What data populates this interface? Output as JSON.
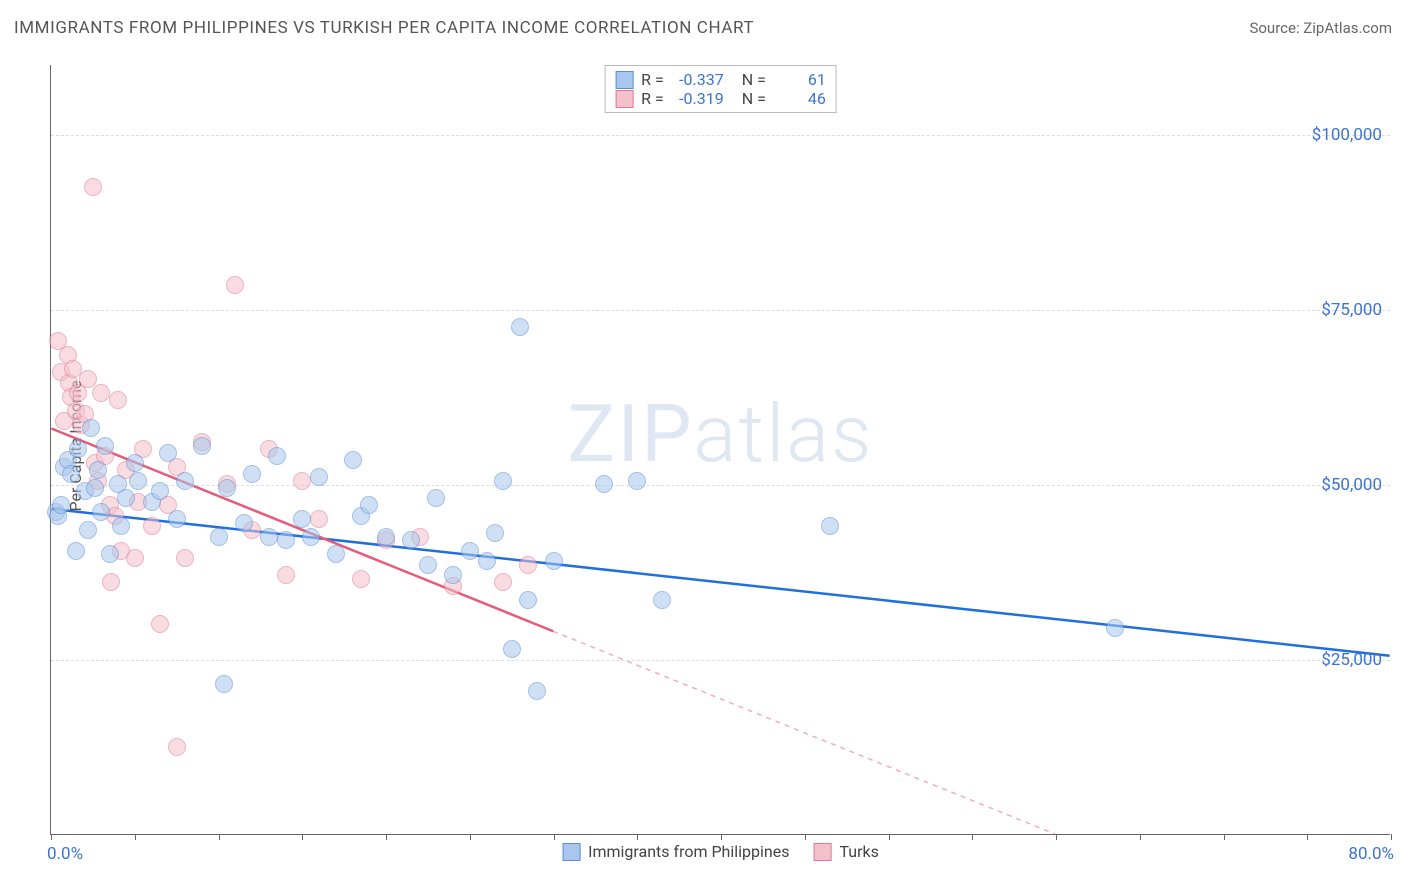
{
  "title": "IMMIGRANTS FROM PHILIPPINES VS TURKISH PER CAPITA INCOME CORRELATION CHART",
  "source_label": "Source: ZipAtlas.com",
  "ylabel": "Per Capita Income",
  "watermark_a": "ZIP",
  "watermark_b": "atlas",
  "chart": {
    "type": "scatter",
    "xlim": [
      0,
      80
    ],
    "x_unit": "%",
    "ylim": [
      0,
      110000
    ],
    "y_unit": "$",
    "x_ticks": [
      0,
      5,
      10,
      15,
      20,
      25,
      30,
      35,
      40,
      45,
      50,
      55,
      60,
      65,
      70,
      75,
      80
    ],
    "y_gridlines": [
      25000,
      50000,
      75000,
      100000
    ],
    "y_tick_labels": [
      "$25,000",
      "$50,000",
      "$75,000",
      "$100,000"
    ],
    "x_min_label": "0.0%",
    "x_max_label": "80.0%",
    "background_color": "#ffffff",
    "grid_color": "#dddddd",
    "axis_color": "#666666",
    "tick_label_color": "#3b74d4",
    "point_radius": 9,
    "point_opacity": 0.55,
    "line_width": 2.5
  },
  "series": [
    {
      "id": "philippines",
      "label": "Immigrants from Philippines",
      "R": "-0.337",
      "N": "61",
      "fill_color": "#a9c7ec",
      "stroke_color": "#5a8fd6",
      "line_color": "#1f6fe0",
      "reg": {
        "x1": 0,
        "y1": 46500,
        "x2": 80,
        "y2": 25500,
        "dash_after_x": null
      },
      "points": [
        [
          0.3,
          46000
        ],
        [
          0.4,
          45500
        ],
        [
          0.6,
          47000
        ],
        [
          0.8,
          52500
        ],
        [
          1.0,
          53500
        ],
        [
          1.2,
          51500
        ],
        [
          1.5,
          40500
        ],
        [
          1.6,
          55000
        ],
        [
          2.0,
          49000
        ],
        [
          2.2,
          43500
        ],
        [
          2.4,
          58000
        ],
        [
          2.6,
          49500
        ],
        [
          2.8,
          52000
        ],
        [
          3.0,
          46000
        ],
        [
          3.2,
          55500
        ],
        [
          3.5,
          40000
        ],
        [
          4.0,
          50000
        ],
        [
          4.2,
          44000
        ],
        [
          4.5,
          48000
        ],
        [
          5.0,
          53000
        ],
        [
          5.2,
          50500
        ],
        [
          6.0,
          47500
        ],
        [
          6.5,
          49000
        ],
        [
          7.0,
          54500
        ],
        [
          7.5,
          45000
        ],
        [
          8.0,
          50500
        ],
        [
          9.0,
          55500
        ],
        [
          10.0,
          42500
        ],
        [
          10.5,
          49500
        ],
        [
          10.3,
          21500
        ],
        [
          11.5,
          44500
        ],
        [
          12.0,
          51500
        ],
        [
          13.0,
          42500
        ],
        [
          13.5,
          54000
        ],
        [
          14.0,
          42000
        ],
        [
          15.0,
          45000
        ],
        [
          15.5,
          42500
        ],
        [
          16.0,
          51000
        ],
        [
          17.0,
          40000
        ],
        [
          18.0,
          53500
        ],
        [
          18.5,
          45500
        ],
        [
          19.0,
          47000
        ],
        [
          20.0,
          42500
        ],
        [
          21.5,
          42000
        ],
        [
          22.5,
          38500
        ],
        [
          23.0,
          48000
        ],
        [
          24.0,
          37000
        ],
        [
          25.0,
          40500
        ],
        [
          26.0,
          39000
        ],
        [
          26.5,
          43000
        ],
        [
          27.0,
          50500
        ],
        [
          27.5,
          26500
        ],
        [
          28.0,
          72500
        ],
        [
          28.5,
          33500
        ],
        [
          29.0,
          20500
        ],
        [
          30.0,
          39000
        ],
        [
          33.0,
          50000
        ],
        [
          35.0,
          50500
        ],
        [
          36.5,
          33500
        ],
        [
          46.5,
          44000
        ],
        [
          63.5,
          29500
        ]
      ]
    },
    {
      "id": "turks",
      "label": "Turks",
      "R": "-0.319",
      "N": "46",
      "fill_color": "#f3c0cb",
      "stroke_color": "#e07a92",
      "line_color": "#e85a7a",
      "reg": {
        "x1": 0,
        "y1": 58000,
        "x2": 60,
        "y2": 0,
        "dash_after_x": 30
      },
      "points": [
        [
          0.4,
          70500
        ],
        [
          0.6,
          66000
        ],
        [
          0.8,
          59000
        ],
        [
          1.0,
          68500
        ],
        [
          1.1,
          64500
        ],
        [
          1.2,
          62500
        ],
        [
          1.3,
          66500
        ],
        [
          1.5,
          60500
        ],
        [
          1.6,
          63000
        ],
        [
          1.8,
          58500
        ],
        [
          2.0,
          60000
        ],
        [
          2.2,
          65000
        ],
        [
          2.5,
          92500
        ],
        [
          2.6,
          53000
        ],
        [
          2.8,
          50500
        ],
        [
          3.0,
          63000
        ],
        [
          3.2,
          54000
        ],
        [
          3.5,
          47000
        ],
        [
          3.6,
          36000
        ],
        [
          3.8,
          45500
        ],
        [
          4.0,
          62000
        ],
        [
          4.2,
          40500
        ],
        [
          4.5,
          52000
        ],
        [
          5.0,
          39500
        ],
        [
          5.2,
          47500
        ],
        [
          5.5,
          55000
        ],
        [
          6.0,
          44000
        ],
        [
          6.5,
          30000
        ],
        [
          7.0,
          47000
        ],
        [
          7.5,
          52500
        ],
        [
          8.0,
          39500
        ],
        [
          7.5,
          12500
        ],
        [
          9.0,
          56000
        ],
        [
          10.5,
          50000
        ],
        [
          11.0,
          78500
        ],
        [
          12.0,
          43500
        ],
        [
          13.0,
          55000
        ],
        [
          14.0,
          37000
        ],
        [
          15.0,
          50500
        ],
        [
          16.0,
          45000
        ],
        [
          18.5,
          36500
        ],
        [
          20.0,
          42000
        ],
        [
          22.0,
          42500
        ],
        [
          24.0,
          35500
        ],
        [
          27.0,
          36000
        ],
        [
          28.5,
          38500
        ]
      ]
    }
  ],
  "legend_top": {
    "r_label": "R =",
    "n_label": "N ="
  }
}
